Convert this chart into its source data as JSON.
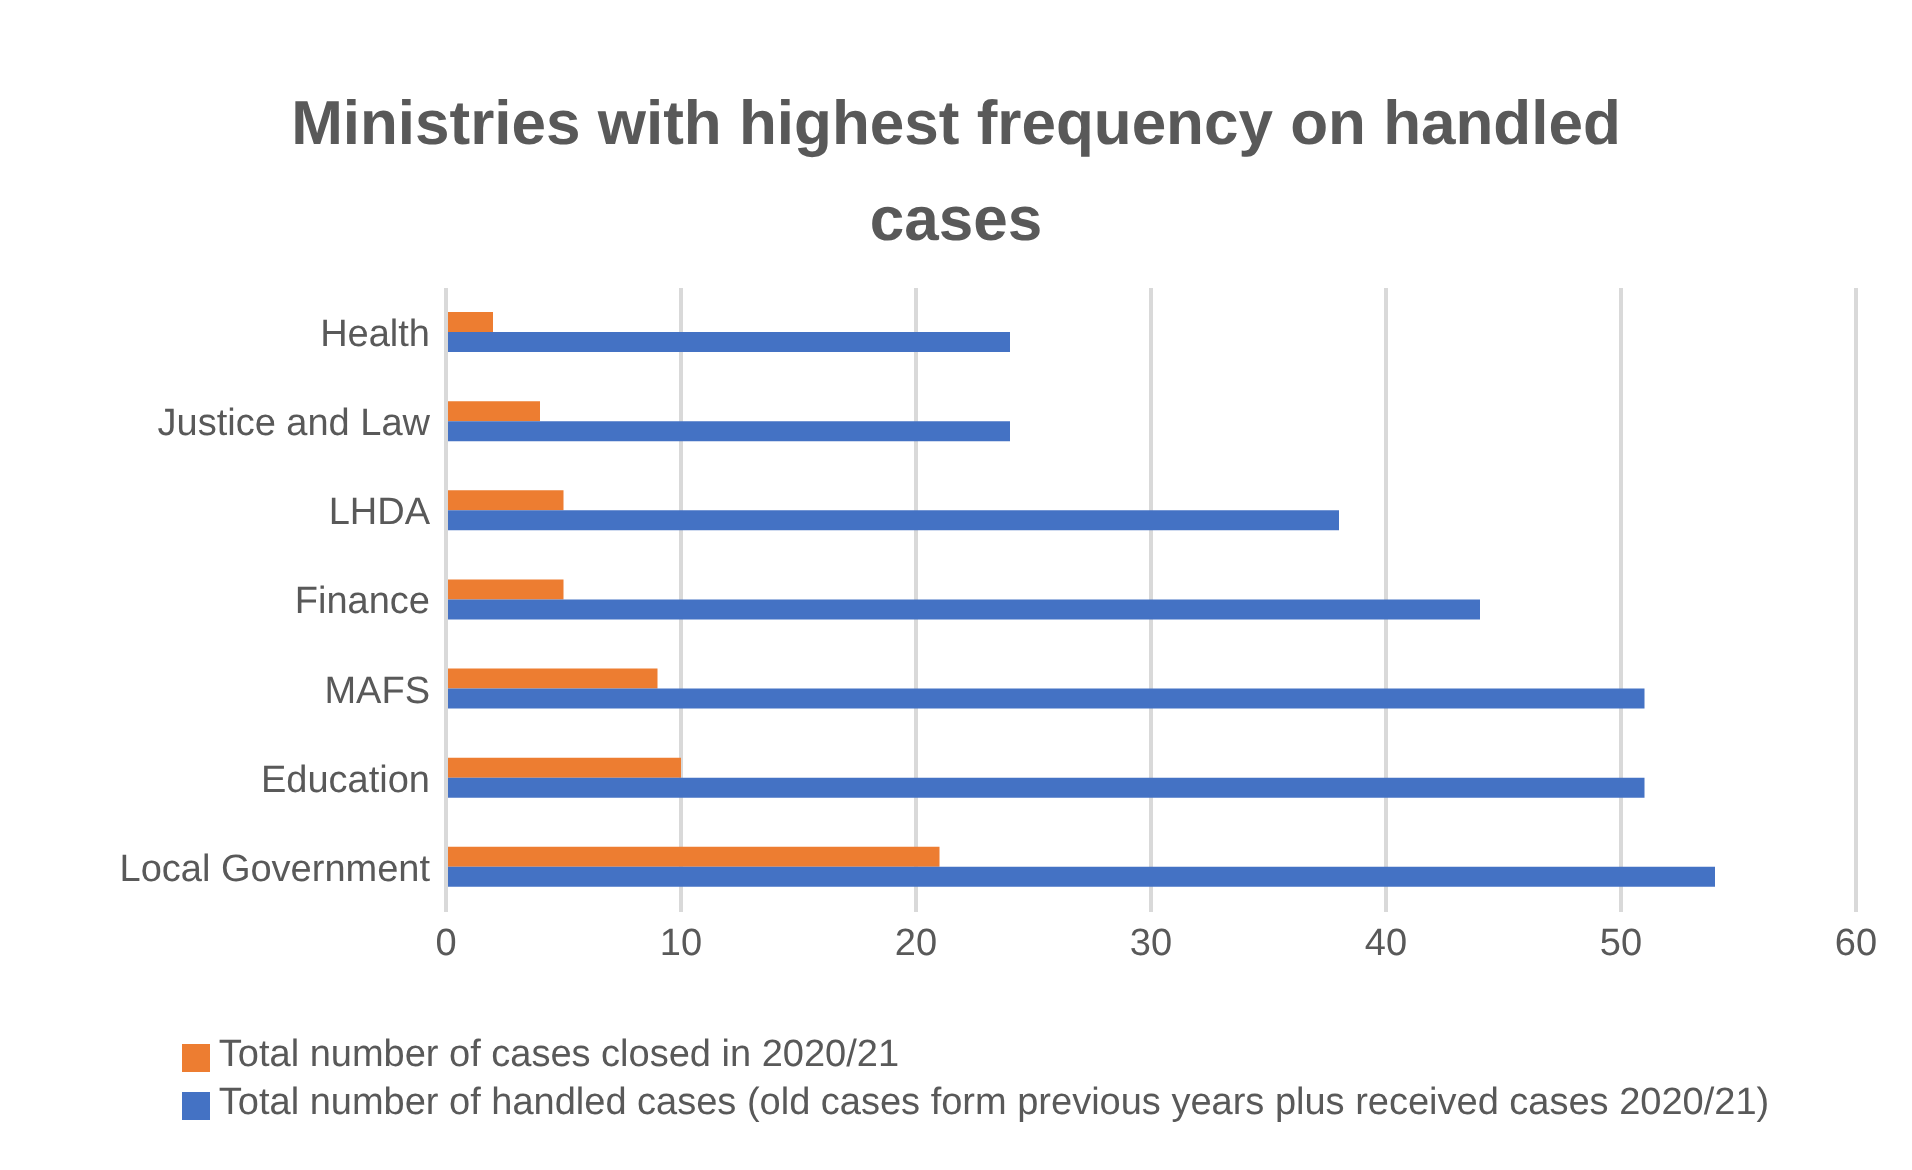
{
  "chart_data": {
    "type": "bar",
    "orientation": "horizontal",
    "title": "Ministries with highest frequency on handled cases",
    "categories": [
      "Health",
      "Justice and Law",
      "LHDA",
      "Finance",
      "MAFS",
      "Education",
      "Local Government"
    ],
    "series": [
      {
        "name": "Total number of cases closed in 2020/21",
        "color": "#ed7d31",
        "values": [
          2,
          4,
          5,
          5,
          9,
          10,
          21
        ]
      },
      {
        "name": "Total number of handled cases (old cases form previous years plus received cases 2020/21)",
        "color": "#4472c4",
        "values": [
          24,
          24,
          38,
          44,
          51,
          51,
          54
        ]
      }
    ],
    "xlim": [
      0,
      60
    ],
    "xticks": [
      0,
      10,
      20,
      30,
      40,
      50,
      60
    ],
    "grid": "x",
    "legend": "bottom"
  }
}
